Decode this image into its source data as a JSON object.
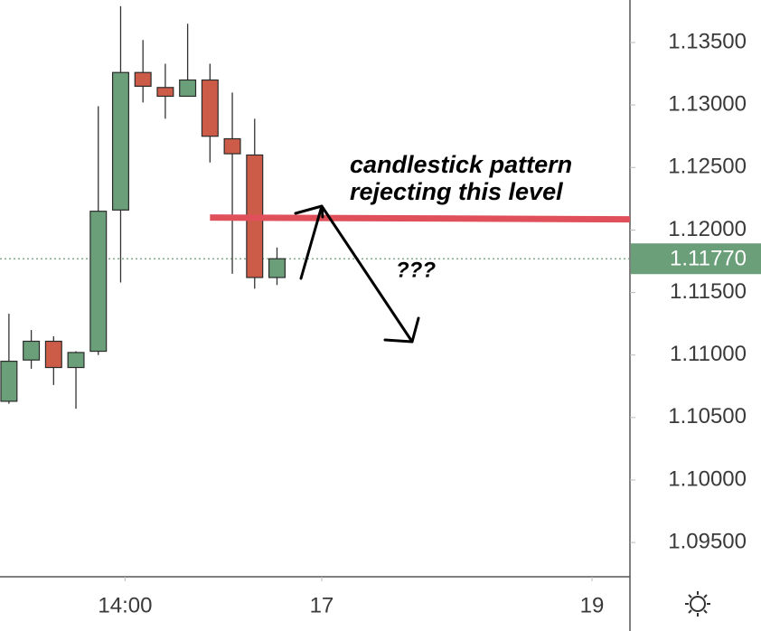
{
  "chart_data": {
    "type": "candlestick",
    "x": [
      0,
      1,
      2,
      3,
      4,
      5,
      6,
      7,
      8,
      9,
      10,
      11,
      12
    ],
    "open": [
      1.1063,
      1.1096,
      1.1111,
      1.109,
      1.1103,
      1.1216,
      1.1326,
      1.1314,
      1.1307,
      1.132,
      1.1273,
      1.126,
      1.1162
    ],
    "high": [
      1.1133,
      1.112,
      1.1115,
      1.1103,
      1.1299,
      1.1379,
      1.1352,
      1.1333,
      1.1365,
      1.1333,
      1.131,
      1.1289,
      1.1186
    ],
    "low": [
      1.1061,
      1.1089,
      1.1076,
      1.1057,
      1.11,
      1.1158,
      1.1302,
      1.1289,
      1.1307,
      1.1254,
      1.1165,
      1.1153,
      1.1156
    ],
    "close": [
      1.1095,
      1.1111,
      1.109,
      1.1102,
      1.1215,
      1.1326,
      1.1315,
      1.1307,
      1.132,
      1.1275,
      1.1261,
      1.1162,
      1.1177
    ],
    "up_color": "#6a9f79",
    "down_color": "#cc5b48",
    "xlim": [
      -0.4,
      27.8
    ],
    "xticks": [
      {
        "value": 5.2,
        "label": "14:00"
      },
      {
        "value": 14,
        "label": "17"
      },
      {
        "value": 26.1,
        "label": "19"
      }
    ],
    "ylim": [
      1.09226,
      1.1384
    ],
    "yticks": [
      {
        "value": 1.095,
        "label": "1.09500"
      },
      {
        "value": 1.1,
        "label": "1.10000"
      },
      {
        "value": 1.105,
        "label": "1.10500"
      },
      {
        "value": 1.11,
        "label": "1.11000"
      },
      {
        "value": 1.115,
        "label": "1.11500"
      },
      {
        "value": 1.12,
        "label": "1.12000"
      },
      {
        "value": 1.125,
        "label": "1.12500"
      },
      {
        "value": 1.13,
        "label": "1.13000"
      },
      {
        "value": 1.135,
        "label": "1.13500"
      }
    ],
    "last_price": {
      "value": 1.1177,
      "label": "1.11770",
      "color": "#6a9f79"
    },
    "level": {
      "value": 1.121,
      "color": "#e0505a"
    },
    "annotations": [
      "candlestick pattern",
      "rejecting this level",
      "???"
    ]
  }
}
